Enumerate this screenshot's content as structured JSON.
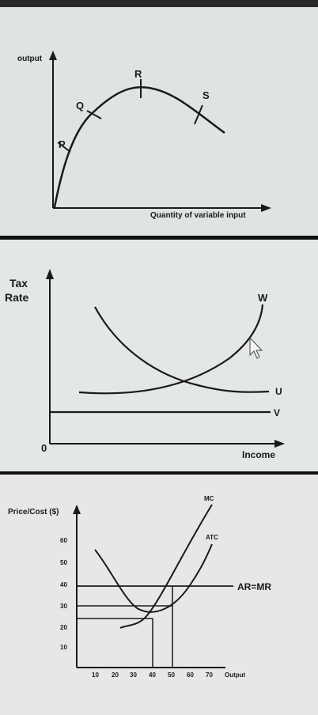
{
  "colors": {
    "ink": "#1a1a1a",
    "panel_bg": "#dfe3e3"
  },
  "chart_data": [
    {
      "type": "line",
      "ylabel": "output",
      "xlabel": "Quantity of variable input",
      "series": [
        {
          "x": [
            0,
            1,
            2,
            3,
            4,
            5,
            6,
            7
          ],
          "values": [
            0,
            45,
            72,
            90,
            100,
            96,
            82,
            66
          ]
        }
      ],
      "point_labels": [
        {
          "text": "P",
          "x": 1.2,
          "y": 52
        },
        {
          "text": "Q",
          "x": 2.1,
          "y": 74
        },
        {
          "text": "R",
          "x": 4.0,
          "y": 100
        },
        {
          "text": "S",
          "x": 6.0,
          "y": 83
        }
      ],
      "grid": false
    },
    {
      "type": "line",
      "ylabel": "Tax Rate",
      "xlabel": "Income",
      "origin_label": "0",
      "series": [
        {
          "name": "W",
          "x": [
            2,
            3,
            4,
            5,
            6,
            7,
            8,
            9
          ],
          "values": [
            3,
            3.1,
            3.4,
            4.0,
            4.8,
            5.9,
            7.2,
            9.2
          ]
        },
        {
          "name": "U",
          "x": [
            2,
            3,
            4,
            5,
            6,
            7,
            8,
            9
          ],
          "values": [
            9.0,
            7.2,
            5.8,
            4.8,
            4.0,
            3.5,
            3.2,
            3.1
          ]
        },
        {
          "name": "V",
          "x": [
            0,
            10
          ],
          "values": [
            2,
            2
          ]
        }
      ],
      "grid": false
    },
    {
      "type": "line",
      "ylabel": "Price/Cost ($)",
      "xlabel": "Output",
      "x_ticks": [
        "10",
        "20",
        "30",
        "40",
        "50",
        "60",
        "70"
      ],
      "y_ticks": [
        "10",
        "20",
        "30",
        "40",
        "50",
        "60"
      ],
      "xlim": [
        0,
        80
      ],
      "ylim": [
        0,
        80
      ],
      "series": [
        {
          "name": "MC",
          "x": [
            24,
            30,
            40,
            50,
            60,
            70
          ],
          "values": [
            20,
            20,
            27,
            45,
            65,
            85
          ]
        },
        {
          "name": "ATC",
          "x": [
            10,
            20,
            30,
            40,
            50,
            60,
            70
          ],
          "values": [
            56,
            40,
            28,
            24,
            28,
            42,
            60
          ]
        },
        {
          "name": "AR=MR",
          "x": [
            0,
            80
          ],
          "values": [
            38,
            38
          ]
        }
      ],
      "reference_lines": [
        {
          "y": 30,
          "x_to": 50
        },
        {
          "y": 23,
          "x_to": 40
        },
        {
          "x": 40,
          "y_to": 23
        },
        {
          "x": 50,
          "y_to": 38
        }
      ],
      "grid": false
    }
  ]
}
